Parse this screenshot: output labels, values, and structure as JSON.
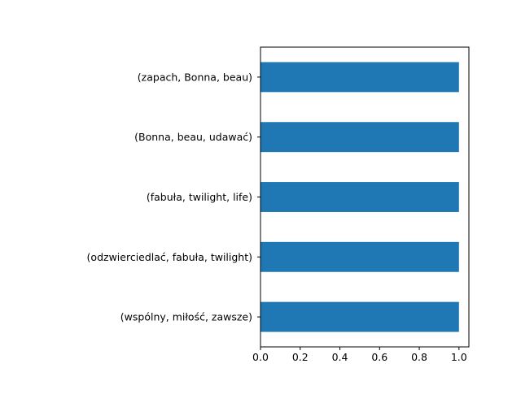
{
  "chart_data": {
    "type": "bar",
    "orientation": "horizontal",
    "title": "",
    "xlabel": "",
    "ylabel": "",
    "categories": [
      "(wspólny, miłość, zawsze)",
      "(odzwierciedlać, fabuła, twilight)",
      "(fabuła, twilight, life)",
      "(Bonna, beau, udawać)",
      "(zapach, Bonna, beau)"
    ],
    "values": [
      1.0,
      1.0,
      1.0,
      1.0,
      1.0
    ],
    "xlim": [
      0.0,
      1.05
    ],
    "xticks": [
      "0.0",
      "0.2",
      "0.4",
      "0.6",
      "0.8",
      "1.0"
    ],
    "xtick_values": [
      0.0,
      0.2,
      0.4,
      0.6,
      0.8,
      1.0
    ],
    "grid": false,
    "legend": "none",
    "bar_color": "#1f77b4"
  }
}
